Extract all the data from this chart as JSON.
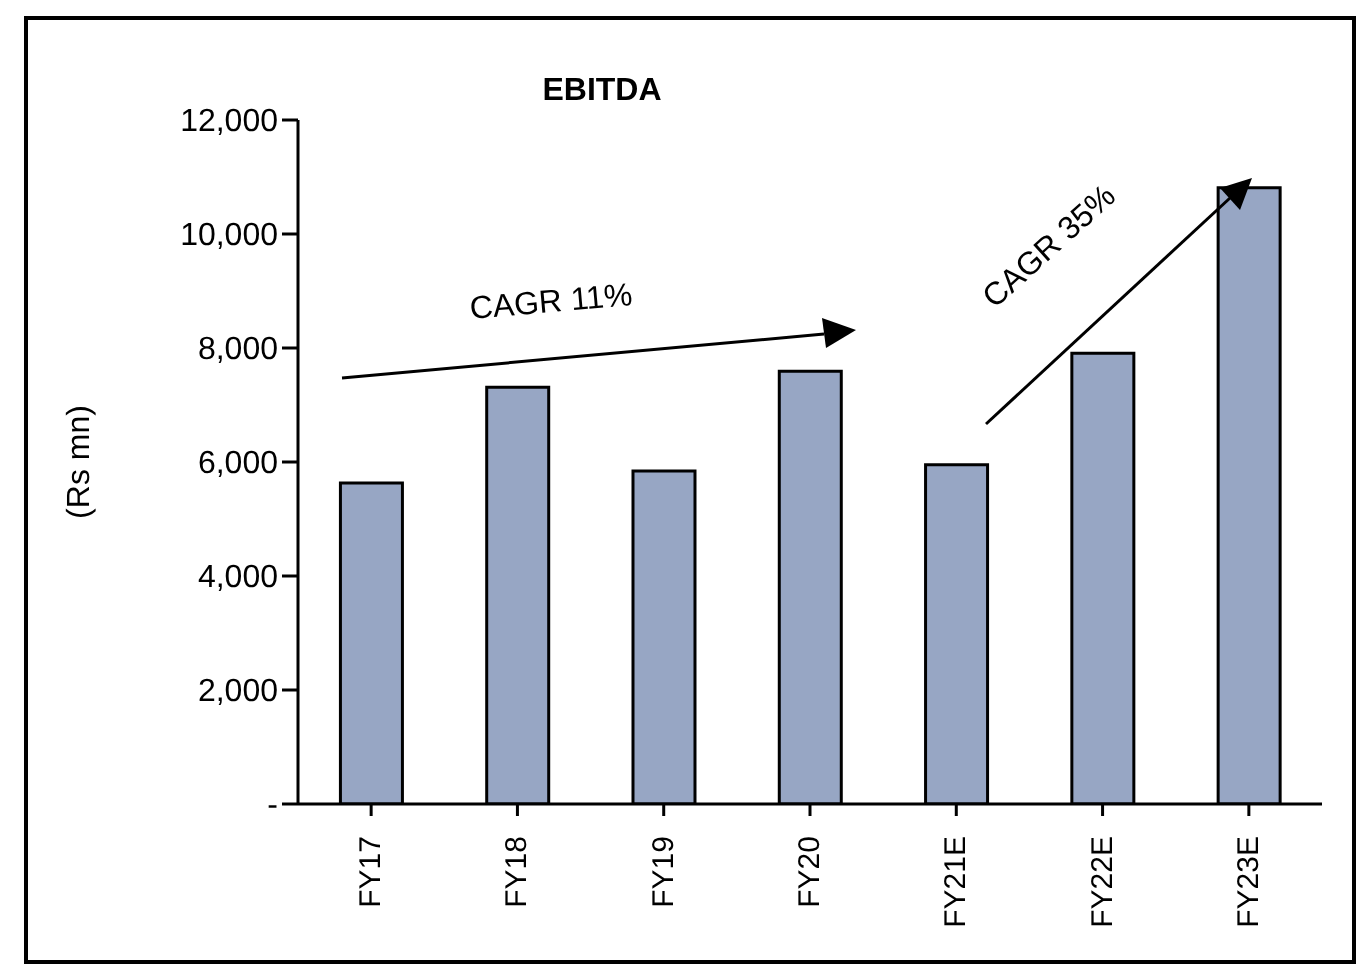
{
  "chart_data": {
    "type": "bar",
    "title": "EBITDA",
    "ylabel": "(Rs mn)",
    "categories": [
      "FY17",
      "FY18",
      "FY19",
      "FY20",
      "FY21E",
      "FY22E",
      "FY23E"
    ],
    "values": [
      5630,
      7310,
      5840,
      7590,
      5950,
      7910,
      10810
    ],
    "color": "#97a6c4",
    "ylim": [
      0,
      12000
    ],
    "yticks": [
      {
        "value": 0,
        "label": "-"
      },
      {
        "value": 2000,
        "label": "2,000"
      },
      {
        "value": 4000,
        "label": "4,000"
      },
      {
        "value": 6000,
        "label": "6,000"
      },
      {
        "value": 8000,
        "label": "8,000"
      },
      {
        "value": 10000,
        "label": "10,000"
      },
      {
        "value": 12000,
        "label": "12,000"
      }
    ],
    "grid": false,
    "legend": false,
    "annotations": [
      "CAGR 11%",
      "CAGR 35%"
    ]
  }
}
